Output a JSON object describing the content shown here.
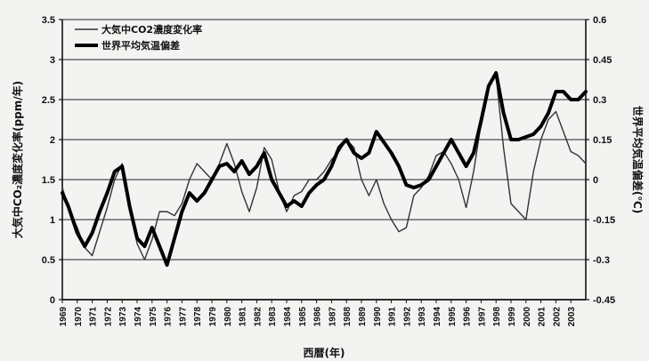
{
  "chart_data": {
    "type": "line",
    "xlabel": "西暦(年)",
    "ylabel_left": "大気中CO₂濃度変化率(ppm/年)",
    "ylabel_right": "世界平均気温偏差(℃)",
    "xlim": [
      1969,
      2004
    ],
    "ylim_left": [
      0,
      3.5
    ],
    "ylim_right": [
      -0.45,
      0.6
    ],
    "yticks_left": [
      "0",
      "0.5",
      "1",
      "1.5",
      "2",
      "2.5",
      "3",
      "3.5"
    ],
    "yticks_right": [
      "-0.45",
      "-0.3",
      "-0.15",
      "0",
      "0.15",
      "0.3",
      "0.45",
      "0.6"
    ],
    "xticks": [
      "1969",
      "1970",
      "1971",
      "1972",
      "1973",
      "1974",
      "1975",
      "1976",
      "1977",
      "1978",
      "1979",
      "1980",
      "1981",
      "1982",
      "1983",
      "1984",
      "1985",
      "1986",
      "1987",
      "1988",
      "1989",
      "1990",
      "1991",
      "1992",
      "1993",
      "1994",
      "1995",
      "1996",
      "1997",
      "1998",
      "1999",
      "2000",
      "2001",
      "2002",
      "2003"
    ],
    "grid": true,
    "legend_position": "top-left",
    "series": [
      {
        "name": "大気中CO2濃度変化率",
        "axis": "left",
        "color": "#333333",
        "x": [
          1969,
          1969.4,
          1970,
          1970.5,
          1971,
          1971.5,
          1972,
          1972.5,
          1973,
          1973.5,
          1974,
          1974.5,
          1975,
          1975.5,
          1976,
          1976.5,
          1977,
          1977.5,
          1978,
          1978.5,
          1979,
          1979.5,
          1980,
          1980.5,
          1981,
          1981.5,
          1982,
          1982.5,
          1983,
          1983.5,
          1984,
          1984.5,
          1985,
          1985.5,
          1986,
          1986.5,
          1987,
          1987.5,
          1988,
          1988.5,
          1989,
          1989.5,
          1990,
          1990.5,
          1991,
          1991.5,
          1992,
          1992.5,
          1993,
          1993.5,
          1994,
          1994.5,
          1995,
          1995.5,
          1996,
          1996.5,
          1997,
          1997.5,
          1998,
          1998.5,
          1999,
          1999.5,
          2000,
          2000.5,
          2001,
          2001.5,
          2002,
          2002.5,
          2003,
          2003.5,
          2004
        ],
        "values": [
          1.4,
          1.15,
          0.9,
          0.65,
          0.55,
          0.85,
          1.15,
          1.5,
          1.7,
          1.2,
          0.7,
          0.5,
          0.75,
          1.1,
          1.1,
          1.05,
          1.2,
          1.5,
          1.7,
          1.6,
          1.5,
          1.7,
          1.95,
          1.7,
          1.35,
          1.1,
          1.4,
          1.9,
          1.75,
          1.35,
          1.1,
          1.3,
          1.35,
          1.5,
          1.5,
          1.6,
          1.75,
          1.85,
          2.0,
          1.9,
          1.5,
          1.3,
          1.5,
          1.2,
          1.0,
          0.85,
          0.9,
          1.3,
          1.4,
          1.55,
          1.8,
          1.85,
          1.7,
          1.5,
          1.15,
          1.6,
          2.2,
          2.7,
          2.8,
          1.9,
          1.2,
          1.1,
          1.0,
          1.6,
          2.0,
          2.25,
          2.35,
          2.1,
          1.85,
          1.8,
          1.7
        ]
      },
      {
        "name": "世界平均気温偏差",
        "axis": "right",
        "color": "#000000",
        "x": [
          1969,
          1969.4,
          1970,
          1970.5,
          1971,
          1971.5,
          1972,
          1972.5,
          1973,
          1973.5,
          1974,
          1974.5,
          1975,
          1975.5,
          1976,
          1976.5,
          1977,
          1977.5,
          1978,
          1978.5,
          1979,
          1979.5,
          1980,
          1980.5,
          1981,
          1981.5,
          1982,
          1982.5,
          1983,
          1983.5,
          1984,
          1984.5,
          1985,
          1985.5,
          1986,
          1986.5,
          1987,
          1987.5,
          1988,
          1988.5,
          1989,
          1989.5,
          1990,
          1990.5,
          1991,
          1991.5,
          1992,
          1992.5,
          1993,
          1993.5,
          1994,
          1994.5,
          1995,
          1995.5,
          1996,
          1996.5,
          1997,
          1997.5,
          1998,
          1998.5,
          1999,
          1999.5,
          2000,
          2000.5,
          2001,
          2001.5,
          2002,
          2002.5,
          2003,
          2003.5,
          2004
        ],
        "values": [
          -0.05,
          -0.1,
          -0.2,
          -0.25,
          -0.2,
          -0.12,
          -0.05,
          0.03,
          0.05,
          -0.1,
          -0.22,
          -0.25,
          -0.18,
          -0.25,
          -0.32,
          -0.22,
          -0.12,
          -0.05,
          -0.08,
          -0.05,
          0.0,
          0.05,
          0.06,
          0.03,
          0.07,
          0.02,
          0.05,
          0.1,
          0.0,
          -0.05,
          -0.1,
          -0.08,
          -0.1,
          -0.05,
          -0.02,
          0.0,
          0.05,
          0.12,
          0.15,
          0.1,
          0.08,
          0.1,
          0.18,
          0.14,
          0.1,
          0.05,
          -0.02,
          -0.03,
          -0.02,
          0.0,
          0.05,
          0.1,
          0.15,
          0.1,
          0.05,
          0.1,
          0.22,
          0.35,
          0.4,
          0.25,
          0.15,
          0.15,
          0.16,
          0.17,
          0.2,
          0.25,
          0.33,
          0.33,
          0.3,
          0.3,
          0.33
        ]
      }
    ]
  }
}
